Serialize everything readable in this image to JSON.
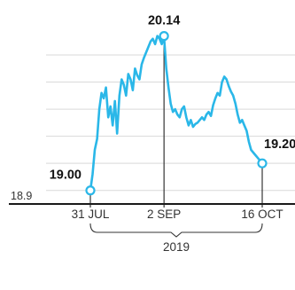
{
  "chart_data": {
    "type": "line",
    "title": "",
    "xlabel": "",
    "ylabel": "",
    "grid": true,
    "legend": "none",
    "ylim": [
      18.9,
      20.19
    ],
    "y_min_label": "18.9",
    "year_label": "2019",
    "color": "#2ab7e8",
    "x_ticks": [
      {
        "date": "2019-07-31",
        "label": "31 JUL"
      },
      {
        "date": "2019-09-02",
        "label": "2 SEP"
      },
      {
        "date": "2019-10-16",
        "label": "16 OCT"
      }
    ],
    "annotations": [
      {
        "date": "2019-07-31",
        "value": 19.0,
        "label": "19.00"
      },
      {
        "date": "2019-09-02",
        "value": 20.14,
        "label": "20.14"
      },
      {
        "date": "2019-10-16",
        "value": 19.2,
        "label": "19.20"
      }
    ],
    "series": [
      {
        "x": [
          "2019-07-31",
          "2019-08-01",
          "2019-08-02",
          "2019-08-03",
          "2019-08-04",
          "2019-08-05",
          "2019-08-06",
          "2019-08-07",
          "2019-08-08",
          "2019-08-09",
          "2019-08-10",
          "2019-08-11",
          "2019-08-12",
          "2019-08-13",
          "2019-08-14",
          "2019-08-15",
          "2019-08-16",
          "2019-08-17",
          "2019-08-18",
          "2019-08-19",
          "2019-08-20",
          "2019-08-21",
          "2019-08-22",
          "2019-08-23",
          "2019-08-24",
          "2019-08-25",
          "2019-08-26",
          "2019-08-27",
          "2019-08-28",
          "2019-08-29",
          "2019-08-30",
          "2019-08-31",
          "2019-09-01",
          "2019-09-02",
          "2019-09-03",
          "2019-09-04",
          "2019-09-05",
          "2019-09-06",
          "2019-09-07",
          "2019-09-08",
          "2019-09-09",
          "2019-09-10",
          "2019-09-11",
          "2019-09-12",
          "2019-09-13",
          "2019-09-14",
          "2019-09-15",
          "2019-09-16",
          "2019-09-17",
          "2019-09-18",
          "2019-09-19",
          "2019-09-20",
          "2019-09-21",
          "2019-09-22",
          "2019-09-23",
          "2019-09-24",
          "2019-09-25",
          "2019-09-26",
          "2019-09-27",
          "2019-09-28",
          "2019-09-29",
          "2019-09-30",
          "2019-10-01",
          "2019-10-02",
          "2019-10-03",
          "2019-10-04",
          "2019-10-05",
          "2019-10-06",
          "2019-10-07",
          "2019-10-08",
          "2019-10-09",
          "2019-10-10",
          "2019-10-11",
          "2019-10-12",
          "2019-10-13",
          "2019-10-14",
          "2019-10-15",
          "2019-10-16"
        ],
        "values": [
          19.0,
          19.12,
          19.3,
          19.38,
          19.6,
          19.72,
          19.68,
          19.76,
          19.54,
          19.62,
          19.48,
          19.66,
          19.42,
          19.7,
          19.82,
          19.78,
          19.7,
          19.86,
          19.82,
          19.74,
          19.9,
          19.85,
          19.82,
          19.93,
          19.98,
          20.02,
          20.06,
          20.1,
          20.12,
          20.08,
          20.14,
          20.12,
          20.08,
          20.14,
          19.9,
          19.76,
          19.64,
          19.58,
          19.6,
          19.56,
          19.54,
          19.6,
          19.62,
          19.54,
          19.48,
          19.52,
          19.47,
          19.49,
          19.5,
          19.52,
          19.54,
          19.52,
          19.56,
          19.58,
          19.55,
          19.63,
          19.68,
          19.72,
          19.7,
          19.8,
          19.84,
          19.82,
          19.77,
          19.73,
          19.7,
          19.64,
          19.56,
          19.5,
          19.52,
          19.48,
          19.44,
          19.36,
          19.3,
          19.28,
          19.26,
          19.24,
          19.22,
          19.2
        ]
      }
    ]
  }
}
